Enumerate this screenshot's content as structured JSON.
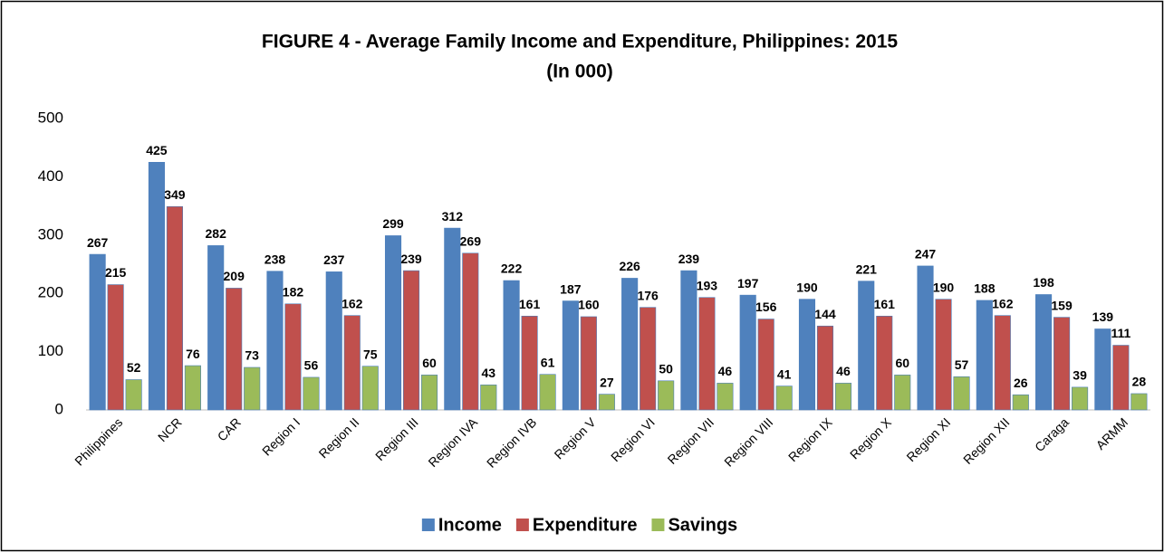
{
  "chart_data": {
    "type": "bar",
    "title": "FIGURE 4 - Average Family Income and Expenditure, Philippines: 2015",
    "subtitle": "(In 000)",
    "categories": [
      "Philippines",
      "NCR",
      "CAR",
      "Region I",
      "Region II",
      "Region III",
      "Region IVA",
      "Region IVB",
      "Region V",
      "Region VI",
      "Region VII",
      "Region VIII",
      "Region IX",
      "Region X",
      "Region XI",
      "Region XII",
      "Caraga",
      "ARMM"
    ],
    "series": [
      {
        "name": "Income",
        "color": "#4f81bd",
        "values": [
          267,
          425,
          282,
          238,
          237,
          299,
          312,
          222,
          187,
          226,
          239,
          197,
          190,
          221,
          247,
          188,
          198,
          139
        ]
      },
      {
        "name": "Expenditure",
        "color": "#c0504d",
        "values": [
          215,
          349,
          209,
          182,
          162,
          239,
          269,
          161,
          160,
          176,
          193,
          156,
          144,
          161,
          190,
          162,
          159,
          111
        ]
      },
      {
        "name": "Savings",
        "color": "#9bbb59",
        "values": [
          52,
          76,
          73,
          56,
          75,
          60,
          43,
          61,
          27,
          50,
          46,
          41,
          46,
          60,
          57,
          26,
          39,
          28
        ]
      }
    ],
    "ylim": [
      0,
      500
    ],
    "yticks": [
      0,
      100,
      200,
      300,
      400,
      500
    ],
    "grid": false,
    "legend": "bottom"
  }
}
